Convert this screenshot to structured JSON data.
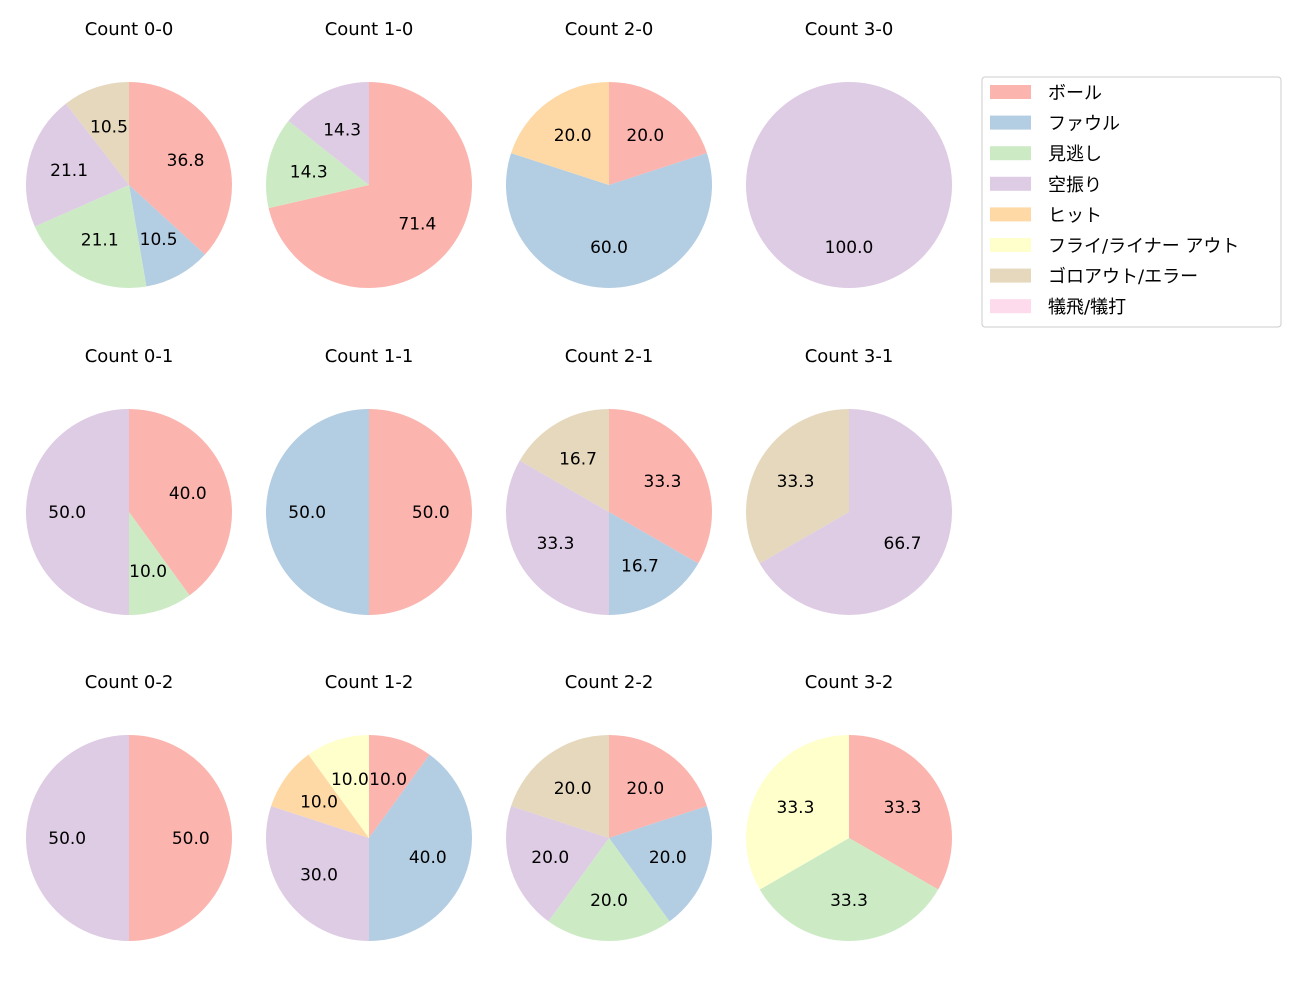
{
  "chart_data": {
    "type": "pie",
    "start_angle": "top",
    "direction": "clockwise",
    "categories": [
      "ボール",
      "ファウル",
      "見逃し",
      "空振り",
      "ヒット",
      "フライ/ライナー アウト",
      "ゴロアウト/エラー",
      "犠飛/犠打"
    ],
    "colors": [
      "#fbb4ae",
      "#b3cde3",
      "#ccebc5",
      "#decbe4",
      "#fed9a6",
      "#ffffcc",
      "#e5d8bd",
      "#fddaec"
    ],
    "legend_placement": "upper-right",
    "pies": [
      {
        "title": "Count 0-0",
        "values": [
          36.8,
          10.5,
          21.1,
          21.1,
          0,
          0,
          10.5,
          0
        ]
      },
      {
        "title": "Count 1-0",
        "values": [
          71.4,
          0,
          14.3,
          14.3,
          0,
          0,
          0,
          0
        ]
      },
      {
        "title": "Count 2-0",
        "values": [
          20.0,
          60.0,
          0,
          0,
          20.0,
          0,
          0,
          0
        ]
      },
      {
        "title": "Count 3-0",
        "values": [
          0,
          0,
          0,
          100.0,
          0,
          0,
          0,
          0
        ]
      },
      {
        "title": "Count 0-1",
        "values": [
          40.0,
          0,
          10.0,
          50.0,
          0,
          0,
          0,
          0
        ]
      },
      {
        "title": "Count 1-1",
        "values": [
          50.0,
          50.0,
          0,
          0,
          0,
          0,
          0,
          0
        ]
      },
      {
        "title": "Count 2-1",
        "values": [
          33.3,
          16.7,
          0,
          33.3,
          0,
          0,
          16.7,
          0
        ]
      },
      {
        "title": "Count 3-1",
        "values": [
          0,
          0,
          0,
          66.7,
          0,
          0,
          33.3,
          0
        ]
      },
      {
        "title": "Count 0-2",
        "values": [
          50.0,
          0,
          0,
          50.0,
          0,
          0,
          0,
          0
        ]
      },
      {
        "title": "Count 1-2",
        "values": [
          10.0,
          40.0,
          0,
          30.0,
          10.0,
          10.0,
          0,
          0
        ]
      },
      {
        "title": "Count 2-2",
        "values": [
          20.0,
          20.0,
          20.0,
          20.0,
          0,
          0,
          20.0,
          0
        ]
      },
      {
        "title": "Count 3-2",
        "values": [
          33.3,
          0,
          33.3,
          0,
          0,
          33.3,
          0,
          0
        ]
      }
    ]
  }
}
